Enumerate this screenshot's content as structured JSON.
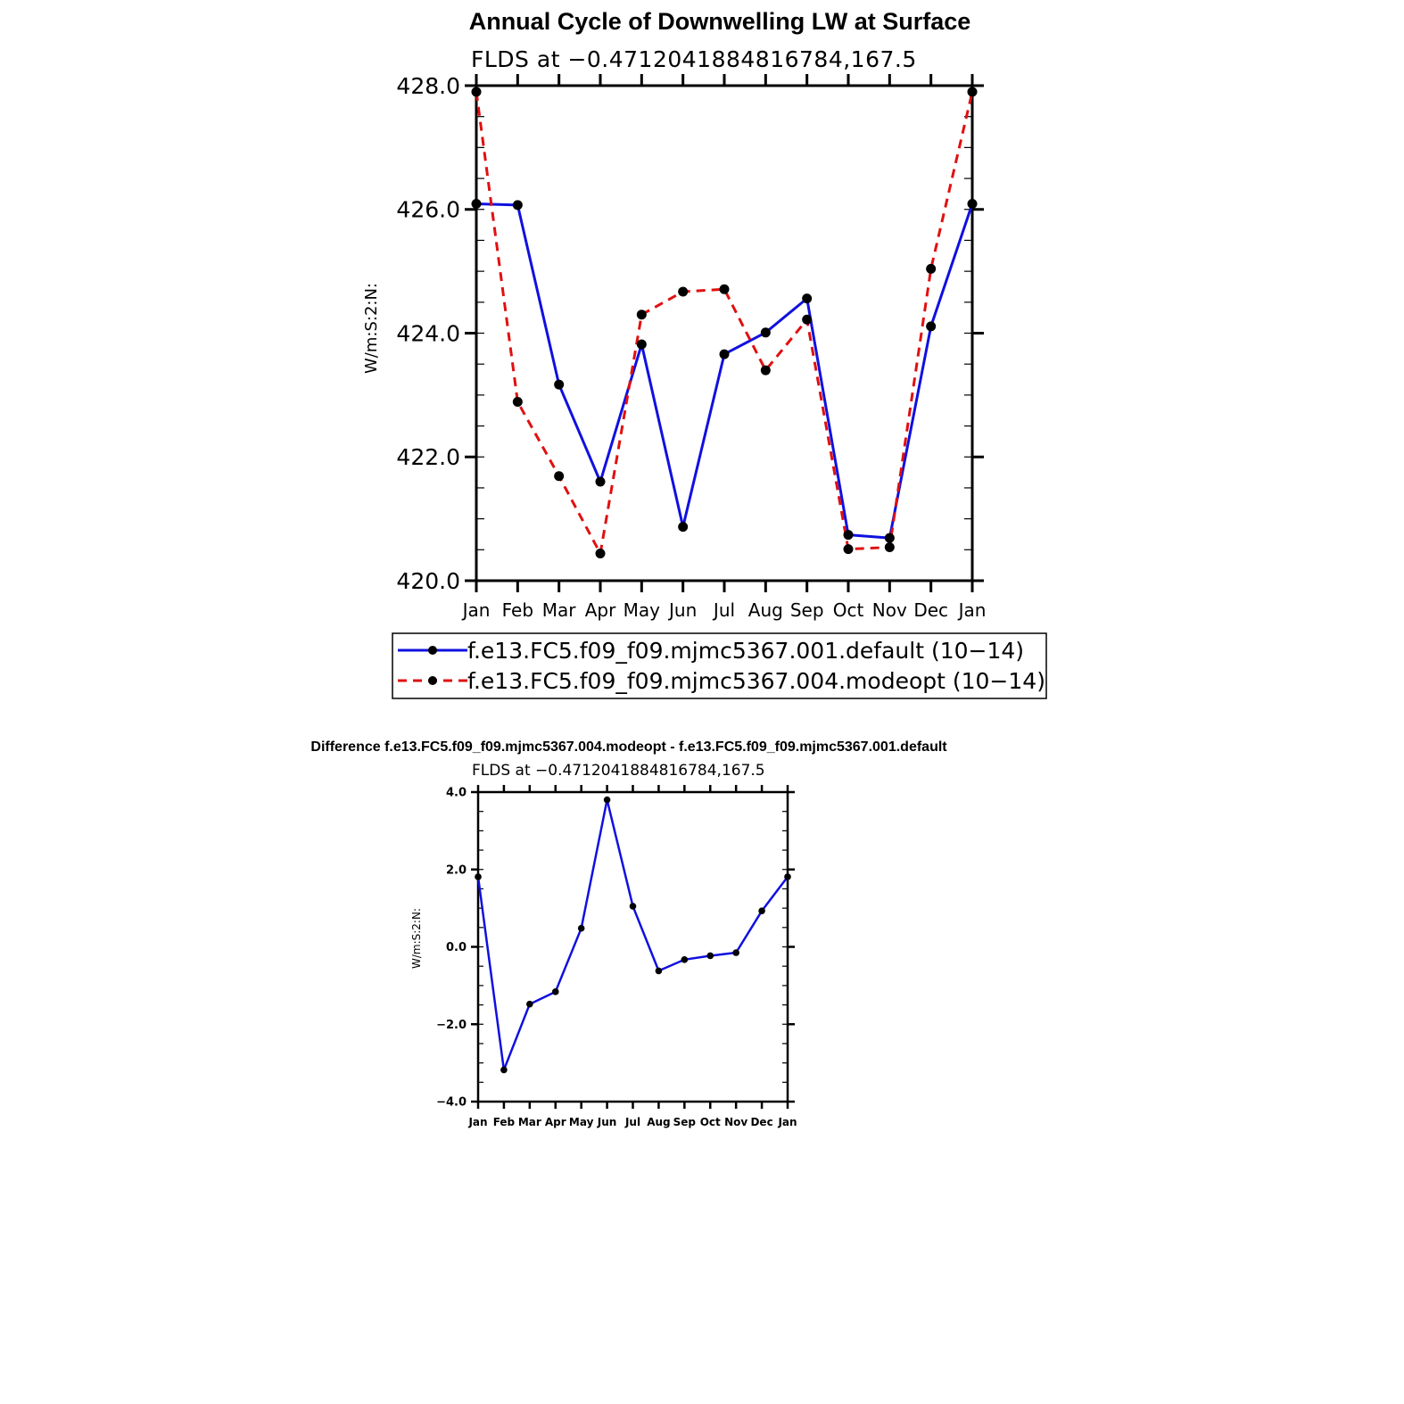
{
  "chart_data": [
    {
      "type": "line",
      "title": "Annual Cycle of Downwelling LW at Surface",
      "subtitle": "FLDS at −0.4712041884816784,167.5",
      "xlabel": "",
      "ylabel": "W/m:S:2:N:",
      "categories": [
        "Jan",
        "Feb",
        "Mar",
        "Apr",
        "May",
        "Jun",
        "Jul",
        "Aug",
        "Sep",
        "Oct",
        "Nov",
        "Dec",
        "Jan"
      ],
      "ylim": [
        420.0,
        428.0
      ],
      "yticks": [
        420.0,
        422.0,
        424.0,
        426.0,
        428.0
      ],
      "ytick_labels": [
        "420.0",
        "422.0",
        "424.0",
        "426.0",
        "428.0"
      ],
      "legend_placement": "below",
      "series": [
        {
          "name": "f.e13.FC5.f09_f09.mjmc5367.001.default (10−14)",
          "color": "#1010e0",
          "dash": "solid",
          "values": [
            426.09,
            426.07,
            423.17,
            421.6,
            423.82,
            420.87,
            423.66,
            424.01,
            424.56,
            420.74,
            420.69,
            424.11,
            426.09
          ]
        },
        {
          "name": "f.e13.FC5.f09_f09.mjmc5367.004.modeopt (10−14)",
          "color": "#e01010",
          "dash": "dashed",
          "values": [
            427.9,
            422.89,
            421.69,
            420.44,
            424.3,
            424.67,
            424.71,
            423.4,
            424.22,
            420.51,
            420.54,
            425.04,
            427.9
          ]
        }
      ]
    },
    {
      "type": "line",
      "title": "Difference f.e13.FC5.f09_f09.mjmc5367.004.modeopt - f.e13.FC5.f09_f09.mjmc5367.001.default",
      "subtitle": "FLDS at −0.4712041884816784,167.5",
      "xlabel": "",
      "ylabel": "W/m:S:2:N:",
      "categories": [
        "Jan",
        "Feb",
        "Mar",
        "Apr",
        "May",
        "Jun",
        "Jul",
        "Aug",
        "Sep",
        "Oct",
        "Nov",
        "Dec",
        "Jan"
      ],
      "ylim": [
        -4.0,
        4.0
      ],
      "yticks": [
        -4.0,
        -2.0,
        0.0,
        2.0,
        4.0
      ],
      "ytick_labels": [
        "−4.0",
        "−2.0",
        "0.0",
        "2.0",
        "4.0"
      ],
      "series": [
        {
          "color": "#1010e0",
          "dash": "solid",
          "values": [
            1.81,
            -3.18,
            -1.48,
            -1.16,
            0.48,
            3.8,
            1.05,
            -0.62,
            -0.33,
            -0.23,
            -0.15,
            0.93,
            1.81
          ]
        }
      ]
    }
  ]
}
